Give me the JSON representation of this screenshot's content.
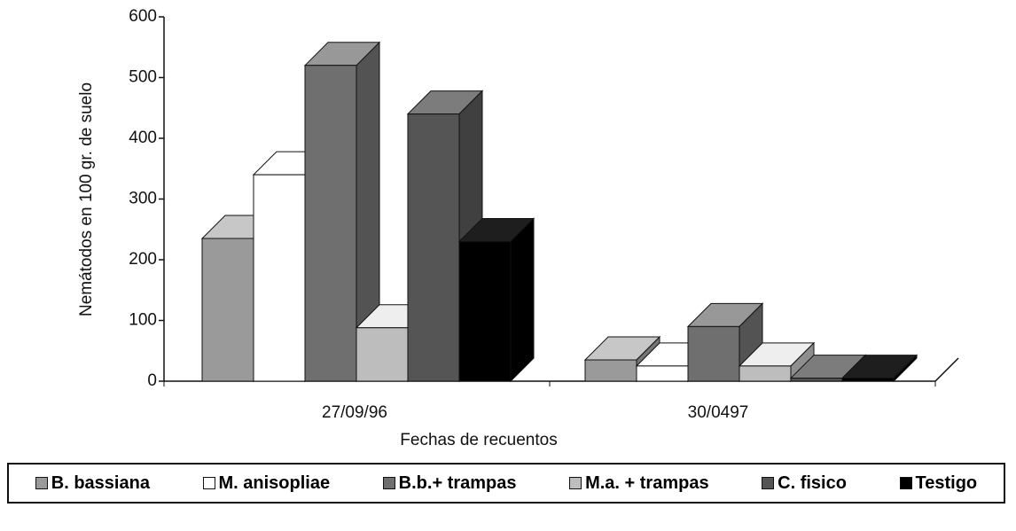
{
  "chart_data": {
    "type": "bar3d",
    "x_label": "Fechas de recuentos",
    "y_label": "Nemátodos en 100 gr. de suelo",
    "categories": [
      "27/09/96",
      "30/0497"
    ],
    "series": [
      {
        "name": "B. bassiana",
        "color": "#9a9a9a",
        "values": [
          235,
          35
        ]
      },
      {
        "name": "M. anisopliae",
        "color": "#ffffff",
        "values": [
          340,
          25
        ]
      },
      {
        "name": "B.b.+ trampas",
        "color": "#6f6f6f",
        "values": [
          520,
          90
        ]
      },
      {
        "name": "M.a. + trampas",
        "color": "#bdbdbd",
        "values": [
          88,
          25
        ]
      },
      {
        "name": "C. fisico",
        "color": "#555555",
        "values": [
          440,
          5
        ]
      },
      {
        "name": "Testigo",
        "color": "#000000",
        "values": [
          230,
          5
        ]
      }
    ],
    "ylim": [
      0,
      600
    ],
    "yticks": [
      0,
      100,
      200,
      300,
      400,
      500,
      600
    ]
  }
}
